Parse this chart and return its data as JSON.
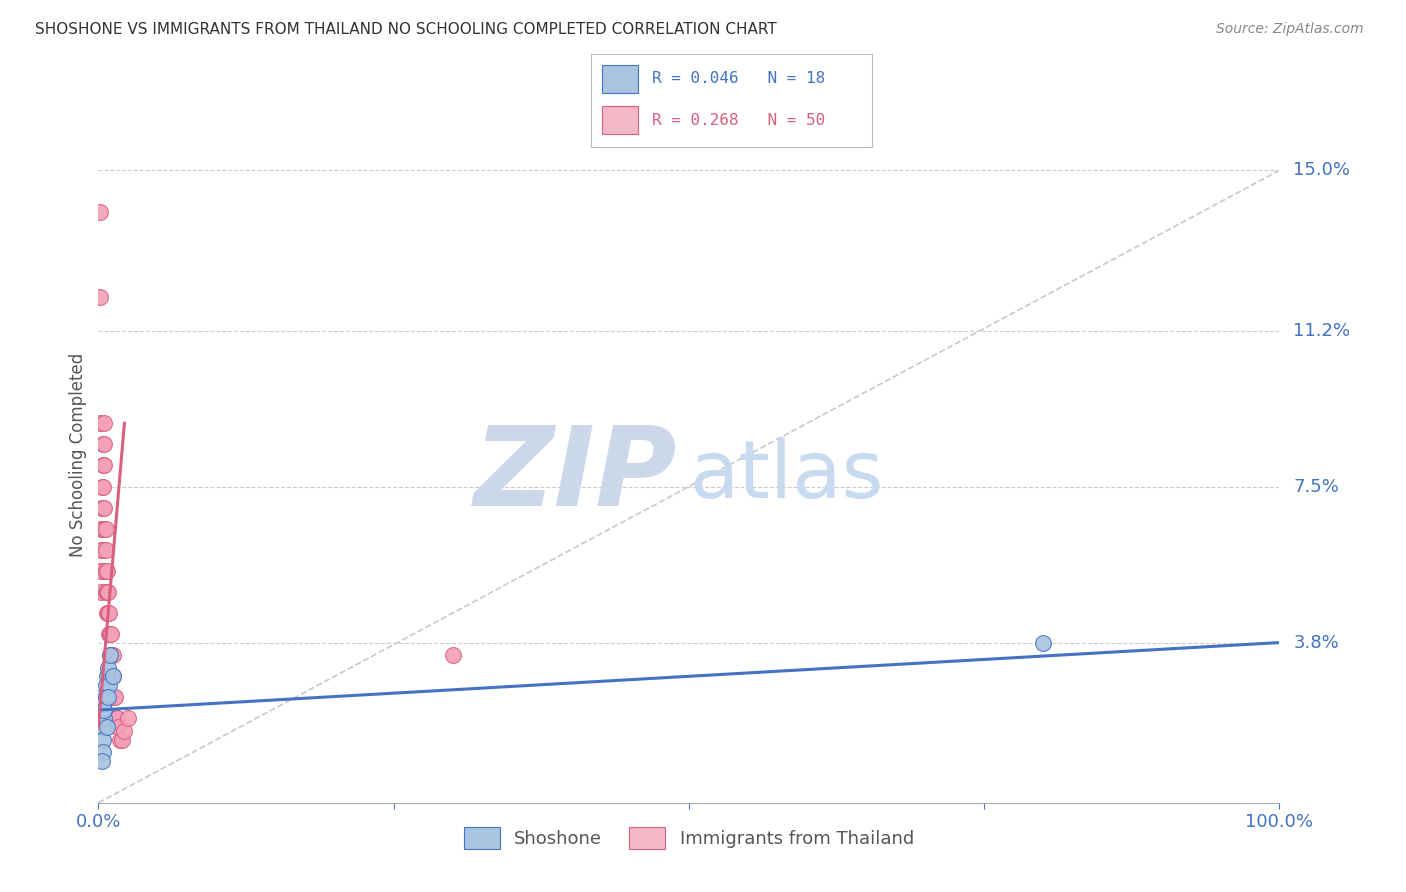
{
  "title": "SHOSHONE VS IMMIGRANTS FROM THAILAND NO SCHOOLING COMPLETED CORRELATION CHART",
  "source": "Source: ZipAtlas.com",
  "ylabel": "No Schooling Completed",
  "ytick_labels": [
    "15.0%",
    "11.2%",
    "7.5%",
    "3.8%"
  ],
  "ytick_values": [
    0.15,
    0.112,
    0.075,
    0.038
  ],
  "xlim": [
    0.0,
    1.0
  ],
  "ylim": [
    0.0,
    0.165
  ],
  "legend_entries": [
    {
      "label": "R = 0.046   N = 18",
      "color": "#a8c4e0",
      "line_color": "#4472c4"
    },
    {
      "label": "R = 0.268   N = 50",
      "color": "#f4b8c8",
      "line_color": "#d95f7f"
    }
  ],
  "shoshone_scatter": {
    "color": "#a8c4e0",
    "edge_color": "#4472c4",
    "x": [
      0.003,
      0.005,
      0.004,
      0.006,
      0.007,
      0.004,
      0.005,
      0.008,
      0.006,
      0.01,
      0.009,
      0.007,
      0.005,
      0.004,
      0.003,
      0.012,
      0.008,
      0.8
    ],
    "y": [
      0.025,
      0.022,
      0.018,
      0.028,
      0.03,
      0.015,
      0.02,
      0.032,
      0.025,
      0.035,
      0.028,
      0.018,
      0.022,
      0.012,
      0.01,
      0.03,
      0.025,
      0.038
    ]
  },
  "thailand_scatter": {
    "color": "#f4a0b8",
    "edge_color": "#d95f7f",
    "x": [
      0.001,
      0.001,
      0.001,
      0.002,
      0.002,
      0.002,
      0.002,
      0.003,
      0.003,
      0.003,
      0.003,
      0.003,
      0.004,
      0.004,
      0.004,
      0.004,
      0.005,
      0.005,
      0.005,
      0.005,
      0.005,
      0.006,
      0.006,
      0.006,
      0.006,
      0.007,
      0.007,
      0.007,
      0.008,
      0.008,
      0.009,
      0.009,
      0.01,
      0.01,
      0.01,
      0.01,
      0.011,
      0.011,
      0.012,
      0.012,
      0.013,
      0.014,
      0.015,
      0.016,
      0.017,
      0.018,
      0.02,
      0.022,
      0.025,
      0.3
    ],
    "y": [
      0.14,
      0.12,
      0.09,
      0.065,
      0.06,
      0.055,
      0.05,
      0.075,
      0.07,
      0.065,
      0.06,
      0.055,
      0.085,
      0.08,
      0.075,
      0.07,
      0.09,
      0.085,
      0.08,
      0.07,
      0.065,
      0.065,
      0.06,
      0.055,
      0.05,
      0.055,
      0.05,
      0.045,
      0.05,
      0.045,
      0.045,
      0.04,
      0.04,
      0.035,
      0.03,
      0.025,
      0.04,
      0.035,
      0.035,
      0.03,
      0.025,
      0.025,
      0.02,
      0.02,
      0.018,
      0.015,
      0.015,
      0.017,
      0.02,
      0.035
    ]
  },
  "shoshone_line": {
    "color": "#4472c4",
    "x": [
      0.0,
      1.0
    ],
    "y": [
      0.022,
      0.038
    ]
  },
  "thailand_line": {
    "color": "#d95f7f",
    "x": [
      0.0,
      0.022
    ],
    "y": [
      0.018,
      0.09
    ]
  },
  "diagonal_line": {
    "color": "#c8c8c8",
    "style": "--"
  },
  "watermark_zip": {
    "text": "ZIP",
    "color": "#ccd8ea",
    "fontsize": 80
  },
  "watermark_atlas": {
    "text": "atlas",
    "color": "#c8daf0",
    "fontsize": 58
  },
  "background_color": "#ffffff",
  "grid_color": "#cccccc",
  "title_color": "#333333",
  "axis_color": "#4472c4"
}
